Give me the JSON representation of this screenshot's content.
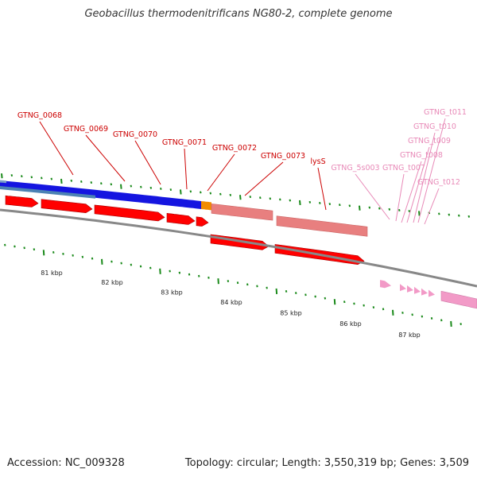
{
  "title": "Geobacillus thermodenitrificans NG80-2, complete genome",
  "footer": {
    "accession": "Accession: NC_009328",
    "topology": "Topology: circular; Length: 3,550,319 bp; Genes: 3,509"
  },
  "colors": {
    "cds": "#ff0000",
    "rrna": "#e87f7f",
    "trna": "#f29ac7",
    "label_red": "#cc0000",
    "label_pink": "#e88ab8",
    "cog_blue": "#1515e0",
    "cog_steel": "#4b82b4",
    "cog_orange": "#f28c00",
    "tick_green": "#1a8a1a",
    "backbone": "#888888"
  },
  "gene_labels": [
    {
      "name": "GTNG_0068",
      "kind": "cds"
    },
    {
      "name": "GTNG_0069",
      "kind": "cds"
    },
    {
      "name": "GTNG_0070",
      "kind": "cds"
    },
    {
      "name": "GTNG_0071",
      "kind": "cds"
    },
    {
      "name": "GTNG_0072",
      "kind": "cds"
    },
    {
      "name": "GTNG_0073",
      "kind": "cds"
    },
    {
      "name": "lysS",
      "kind": "cds"
    },
    {
      "name": "GTNG_5s003",
      "kind": "rrna"
    },
    {
      "name": "GTNG_t007",
      "kind": "trna"
    },
    {
      "name": "GTNG_t008",
      "kind": "trna"
    },
    {
      "name": "GTNG_t009",
      "kind": "trna"
    },
    {
      "name": "GTNG_t010",
      "kind": "trna"
    },
    {
      "name": "GTNG_t011",
      "kind": "trna"
    },
    {
      "name": "GTNG_t012",
      "kind": "trna"
    }
  ],
  "scale_labels": [
    "81 kbp",
    "82 kbp",
    "83 kbp",
    "84 kbp",
    "85 kbp",
    "86 kbp",
    "87 kbp"
  ]
}
